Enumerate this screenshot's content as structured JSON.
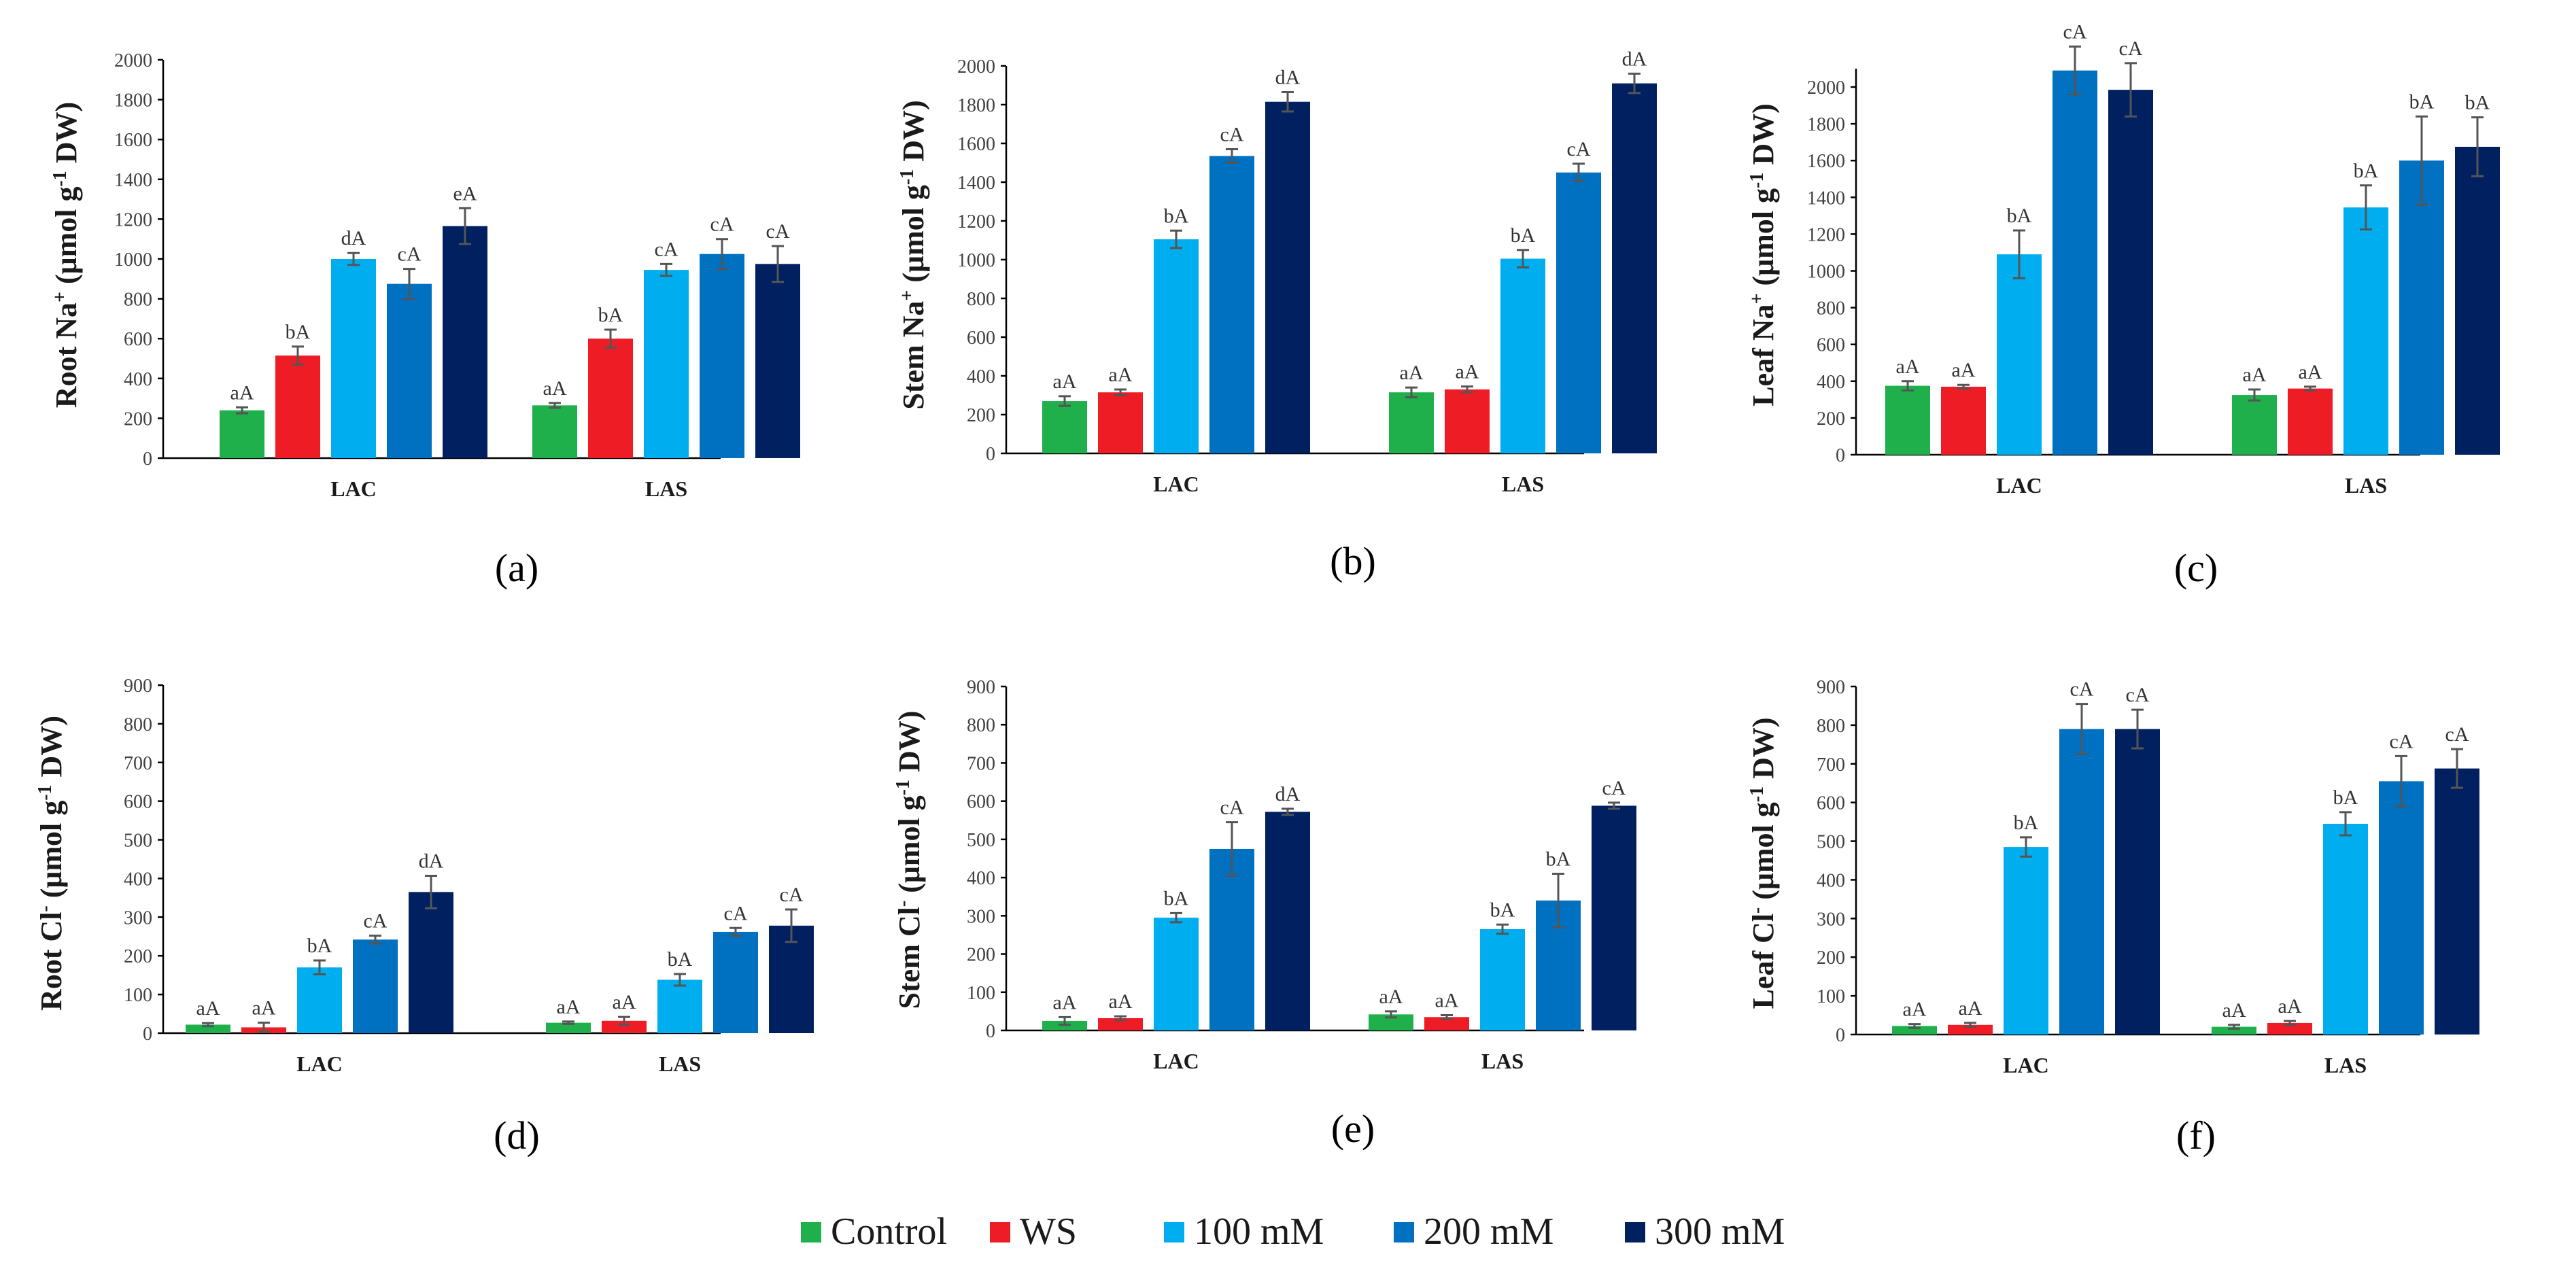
{
  "chart_data": [
    {
      "panel": "(a)",
      "type": "bar",
      "ylabel": "Root Na⁺ (μmol g⁻¹ DW)",
      "ylabel_main": "Root Na",
      "ylabel_sup1": "+",
      "ylabel_mid": " (μmol g",
      "ylabel_sup2": "-1",
      "ylabel_end": " DW)",
      "ylim": [
        0,
        2000
      ],
      "yticks": [
        0,
        200,
        400,
        600,
        800,
        1000,
        1200,
        1400,
        1600,
        1800,
        2000
      ],
      "categories": [
        "LAC",
        "LAS"
      ],
      "series": [
        {
          "name": "Control",
          "values": [
            240,
            265
          ],
          "errors": [
            15,
            12
          ],
          "labels": [
            "aA",
            "aA"
          ]
        },
        {
          "name": "WS",
          "values": [
            515,
            600
          ],
          "errors": [
            45,
            45
          ],
          "labels": [
            "bA",
            "bA"
          ]
        },
        {
          "name": "100 mM",
          "values": [
            1000,
            945
          ],
          "errors": [
            30,
            30
          ],
          "labels": [
            "dA",
            "cA"
          ]
        },
        {
          "name": "200 mM",
          "values": [
            875,
            1025
          ],
          "errors": [
            75,
            75
          ],
          "labels": [
            "cA",
            "cA"
          ]
        },
        {
          "name": "300 mM",
          "values": [
            1165,
            975
          ],
          "errors": [
            90,
            90
          ],
          "labels": [
            "eA",
            "cA"
          ]
        }
      ]
    },
    {
      "panel": "(b)",
      "type": "bar",
      "ylabel": "Stem Na⁺ (μmol g⁻¹ DW)",
      "ylabel_main": "Stem Na",
      "ylabel_sup1": "+",
      "ylabel_mid": " (μmol g",
      "ylabel_sup2": "-1",
      "ylabel_end": " DW)",
      "ylim": [
        0,
        2000
      ],
      "yticks": [
        0,
        200,
        400,
        600,
        800,
        1000,
        1200,
        1400,
        1600,
        1800,
        2000
      ],
      "categories": [
        "LAC",
        "LAS"
      ],
      "series": [
        {
          "name": "Control",
          "values": [
            270,
            315
          ],
          "errors": [
            25,
            25
          ],
          "labels": [
            "aA",
            "aA"
          ]
        },
        {
          "name": "WS",
          "values": [
            315,
            330
          ],
          "errors": [
            15,
            15
          ],
          "labels": [
            "aA",
            "aA"
          ]
        },
        {
          "name": "100 mM",
          "values": [
            1105,
            1005
          ],
          "errors": [
            45,
            45
          ],
          "labels": [
            "bA",
            "bA"
          ]
        },
        {
          "name": "200 mM",
          "values": [
            1535,
            1450
          ],
          "errors": [
            35,
            45
          ],
          "labels": [
            "cA",
            "cA"
          ]
        },
        {
          "name": "300 mM",
          "values": [
            1815,
            1910
          ],
          "errors": [
            50,
            50
          ],
          "labels": [
            "dA",
            "dA"
          ]
        }
      ]
    },
    {
      "panel": "(c)",
      "type": "bar",
      "ylabel": "Leaf Na⁺ (μmol g⁻¹ DW)",
      "ylabel_main": "Leaf Na",
      "ylabel_sup1": "+",
      "ylabel_mid": " (μmol g",
      "ylabel_sup2": "-1",
      "ylabel_end": " DW)",
      "ylim": [
        0,
        2100
      ],
      "yticks": [
        0,
        200,
        400,
        600,
        800,
        1000,
        1200,
        1400,
        1600,
        1800,
        2000
      ],
      "categories": [
        "LAC",
        "LAS"
      ],
      "series": [
        {
          "name": "Control",
          "values": [
            375,
            325
          ],
          "errors": [
            25,
            30
          ],
          "labels": [
            "aA",
            "aA"
          ]
        },
        {
          "name": "WS",
          "values": [
            370,
            360
          ],
          "errors": [
            10,
            10
          ],
          "labels": [
            "aA",
            "aA"
          ]
        },
        {
          "name": "100 mM",
          "values": [
            1090,
            1345
          ],
          "errors": [
            130,
            120
          ],
          "labels": [
            "bA",
            "bA"
          ]
        },
        {
          "name": "200 mM",
          "values": [
            2090,
            1600
          ],
          "errors": [
            130,
            240
          ],
          "labels": [
            "cA",
            "bA"
          ]
        },
        {
          "name": "300 mM",
          "values": [
            1985,
            1675
          ],
          "errors": [
            145,
            160
          ],
          "labels": [
            "cA",
            "bA"
          ]
        }
      ]
    },
    {
      "panel": "(d)",
      "type": "bar",
      "ylabel": "Root Cl⁻ (μmol g⁻¹ DW)",
      "ylabel_main": "Root Cl",
      "ylabel_sup1": "-",
      "ylabel_mid": " (μmol g",
      "ylabel_sup2": "-1",
      "ylabel_end": " DW)",
      "ylim": [
        0,
        900
      ],
      "yticks": [
        0,
        100,
        200,
        300,
        400,
        500,
        600,
        700,
        800,
        900
      ],
      "categories": [
        "LAC",
        "LAS"
      ],
      "series": [
        {
          "name": "Control",
          "values": [
            22,
            27
          ],
          "errors": [
            4,
            3
          ],
          "labels": [
            "aA",
            "aA"
          ]
        },
        {
          "name": "WS",
          "values": [
            15,
            32
          ],
          "errors": [
            12,
            10
          ],
          "labels": [
            "aA",
            "aA"
          ]
        },
        {
          "name": "100 mM",
          "values": [
            170,
            138
          ],
          "errors": [
            18,
            15
          ],
          "labels": [
            "bA",
            "bA"
          ]
        },
        {
          "name": "200 mM",
          "values": [
            242,
            262
          ],
          "errors": [
            10,
            10
          ],
          "labels": [
            "cA",
            "cA"
          ]
        },
        {
          "name": "300 mM",
          "values": [
            365,
            278
          ],
          "errors": [
            42,
            42
          ],
          "labels": [
            "dA",
            "cA"
          ]
        }
      ]
    },
    {
      "panel": "(e)",
      "type": "bar",
      "ylabel": "Stem Cl⁻ (μmol g⁻¹ DW)",
      "ylabel_main": "Stem Cl",
      "ylabel_sup1": "-",
      "ylabel_mid": " (μmol g",
      "ylabel_sup2": "-1",
      "ylabel_end": " DW)",
      "ylim": [
        0,
        900
      ],
      "yticks": [
        0,
        100,
        200,
        300,
        400,
        500,
        600,
        700,
        800,
        900
      ],
      "categories": [
        "LAC",
        "LAS"
      ],
      "series": [
        {
          "name": "Control",
          "values": [
            25,
            42
          ],
          "errors": [
            10,
            8
          ],
          "labels": [
            "aA",
            "aA"
          ]
        },
        {
          "name": "WS",
          "values": [
            32,
            35
          ],
          "errors": [
            5,
            5
          ],
          "labels": [
            "aA",
            "aA"
          ]
        },
        {
          "name": "100 mM",
          "values": [
            295,
            265
          ],
          "errors": [
            12,
            12
          ],
          "labels": [
            "bA",
            "bA"
          ]
        },
        {
          "name": "200 mM",
          "values": [
            475,
            340
          ],
          "errors": [
            70,
            70
          ],
          "labels": [
            "cA",
            "bA"
          ]
        },
        {
          "name": "300 mM",
          "values": [
            572,
            588
          ],
          "errors": [
            8,
            8
          ],
          "labels": [
            "dA",
            "cA"
          ]
        }
      ]
    },
    {
      "panel": "(f)",
      "type": "bar",
      "ylabel": "Leaf Cl⁻ (μmol g⁻¹ DW)",
      "ylabel_main": "Leaf Cl",
      "ylabel_sup1": "-",
      "ylabel_mid": " (μmol g",
      "ylabel_sup2": "-1",
      "ylabel_end": " DW)",
      "ylim": [
        0,
        900
      ],
      "yticks": [
        0,
        100,
        200,
        300,
        400,
        500,
        600,
        700,
        800,
        900
      ],
      "categories": [
        "LAC",
        "LAS"
      ],
      "series": [
        {
          "name": "Control",
          "values": [
            22,
            20
          ],
          "errors": [
            5,
            5
          ],
          "labels": [
            "aA",
            "aA"
          ]
        },
        {
          "name": "WS",
          "values": [
            25,
            30
          ],
          "errors": [
            5,
            5
          ],
          "labels": [
            "aA",
            "aA"
          ]
        },
        {
          "name": "100 mM",
          "values": [
            485,
            545
          ],
          "errors": [
            25,
            30
          ],
          "labels": [
            "bA",
            "bA"
          ]
        },
        {
          "name": "200 mM",
          "values": [
            790,
            655
          ],
          "errors": [
            65,
            65
          ],
          "labels": [
            "cA",
            "cA"
          ]
        },
        {
          "name": "300 mM",
          "values": [
            790,
            688
          ],
          "errors": [
            50,
            50
          ],
          "labels": [
            "cA",
            "cA"
          ]
        }
      ]
    }
  ],
  "legend": [
    {
      "name": "Control",
      "color": "#1faf4b"
    },
    {
      "name": "WS",
      "color": "#ee1c25"
    },
    {
      "name": "100 mM",
      "color": "#00aeef"
    },
    {
      "name": "200 mM",
      "color": "#0070c0"
    },
    {
      "name": "300 mM",
      "color": "#002060"
    }
  ]
}
